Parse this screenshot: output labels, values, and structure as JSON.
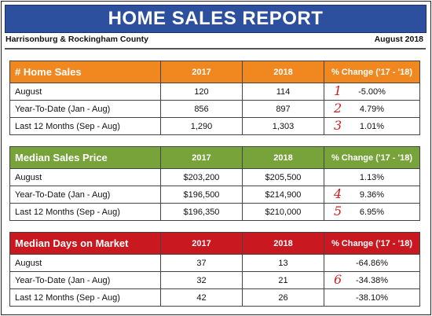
{
  "title": "HOME SALES REPORT",
  "region": "Harrisonburg & Rockingham County",
  "report_month": "August 2018",
  "colors": {
    "banner": "#2c4f9e",
    "home_sales_header": "#f0871f",
    "median_price_header": "#78a23a",
    "days_on_market_header": "#c9181f",
    "annotation": "#d01f1f"
  },
  "tables": [
    {
      "title": "# Home Sales",
      "col_2017": "2017",
      "col_2018": "2018",
      "col_change": "% Change ('17 - '18)",
      "rows": [
        {
          "label": "August",
          "v2017": "120",
          "v2018": "114",
          "change": "-5.00%",
          "marker": "1"
        },
        {
          "label": "Year-To-Date (Jan - Aug)",
          "v2017": "856",
          "v2018": "897",
          "change": "4.79%",
          "marker": "2"
        },
        {
          "label": "Last 12 Months (Sep - Aug)",
          "v2017": "1,290",
          "v2018": "1,303",
          "change": "1.01%",
          "marker": "3"
        }
      ]
    },
    {
      "title": "Median Sales Price",
      "col_2017": "2017",
      "col_2018": "2018",
      "col_change": "% Change ('17 - '18)",
      "rows": [
        {
          "label": "August",
          "v2017": "$203,200",
          "v2018": "$205,500",
          "change": "1.13%",
          "marker": ""
        },
        {
          "label": "Year-To-Date (Jan - Aug)",
          "v2017": "$196,500",
          "v2018": "$214,900",
          "change": "9.36%",
          "marker": "4"
        },
        {
          "label": "Last 12 Months (Sep - Aug)",
          "v2017": "$196,350",
          "v2018": "$210,000",
          "change": "6.95%",
          "marker": "5"
        }
      ]
    },
    {
      "title": "Median Days on Market",
      "col_2017": "2017",
      "col_2018": "2018",
      "col_change": "% Change ('17 - '18)",
      "rows": [
        {
          "label": "August",
          "v2017": "37",
          "v2018": "13",
          "change": "-64.86%",
          "marker": ""
        },
        {
          "label": "Year-To-Date (Jan - Aug)",
          "v2017": "32",
          "v2018": "21",
          "change": "-34.38%",
          "marker": "6"
        },
        {
          "label": "Last 12 Months (Sep - Aug)",
          "v2017": "42",
          "v2018": "26",
          "change": "-38.10%",
          "marker": ""
        }
      ]
    }
  ]
}
